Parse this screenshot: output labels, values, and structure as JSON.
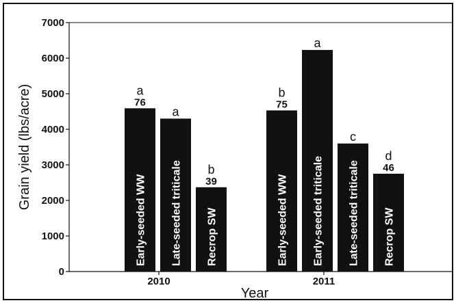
{
  "chart_data": {
    "type": "bar",
    "xlabel": "Year",
    "ylabel": "Grain yield (lbs/acre)",
    "ylim": [
      0,
      7000
    ],
    "yticks": [
      0,
      1000,
      2000,
      3000,
      4000,
      5000,
      6000,
      7000
    ],
    "groups": [
      {
        "label": "2010",
        "bars": [
          {
            "name": "Early-seeded WW",
            "value": 4590,
            "letter": "a",
            "pct": "76"
          },
          {
            "name": "Late-seeded triticale",
            "value": 4300,
            "letter": "a",
            "pct": ""
          },
          {
            "name": "Recrop SW",
            "value": 2370,
            "letter": "b",
            "pct": "39"
          }
        ]
      },
      {
        "label": "2011",
        "bars": [
          {
            "name": "Early-seeded WW",
            "value": 4530,
            "letter": "b",
            "pct": "75"
          },
          {
            "name": "Early-seeded triticale",
            "value": 6230,
            "letter": "a",
            "pct": ""
          },
          {
            "name": "Late-seeded triticale",
            "value": 3600,
            "letter": "c",
            "pct": ""
          },
          {
            "name": "Recrop SW",
            "value": 2750,
            "letter": "d",
            "pct": "46"
          }
        ]
      }
    ],
    "bar_color": "#111111",
    "grid": false,
    "legend": "none"
  }
}
